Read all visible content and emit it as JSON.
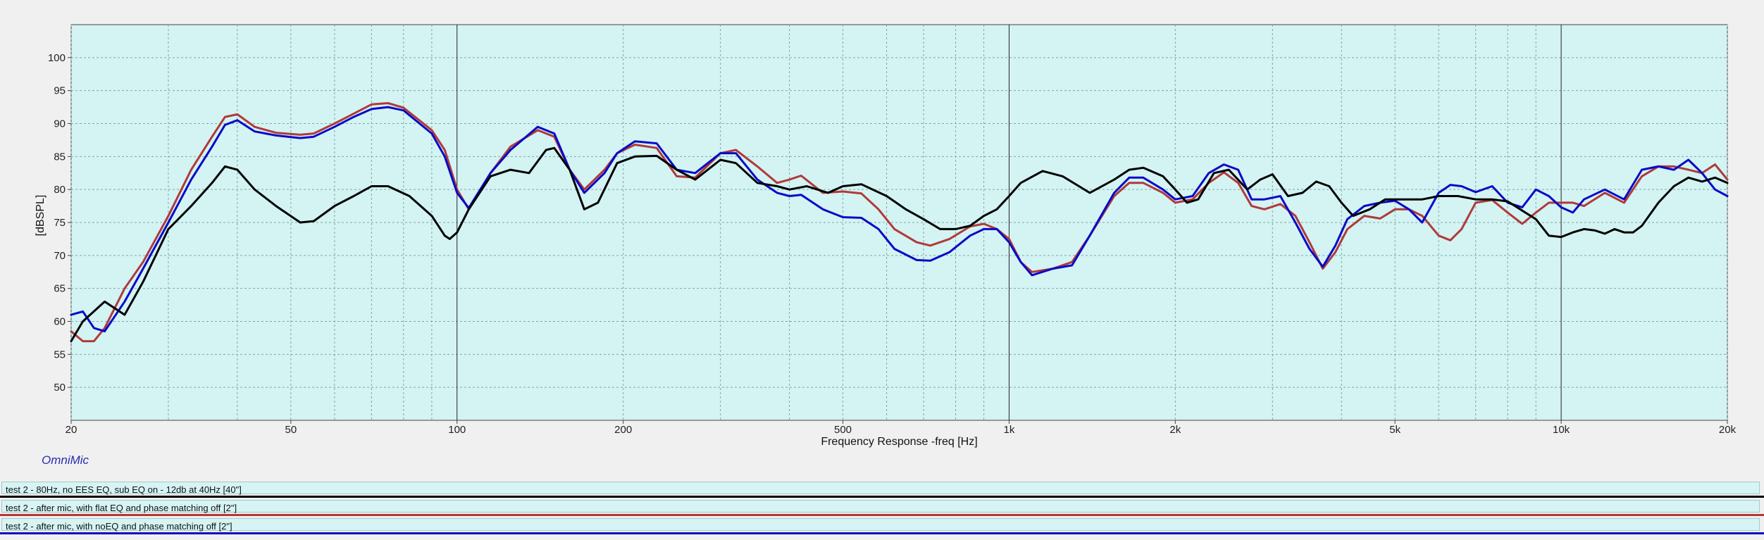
{
  "chart_data": {
    "type": "line",
    "xscale": "log",
    "xlim": [
      20,
      20000
    ],
    "ylim": [
      45,
      105
    ],
    "grid": true,
    "xlabel": "Frequency Response -freq [Hz]",
    "ylabel": "[dBSPL]",
    "yticks": [
      50,
      55,
      60,
      65,
      70,
      75,
      80,
      85,
      90,
      95,
      100
    ],
    "xticks": [
      {
        "v": 20,
        "label": "20"
      },
      {
        "v": 50,
        "label": "50"
      },
      {
        "v": 100,
        "label": "100"
      },
      {
        "v": 200,
        "label": "200"
      },
      {
        "v": 500,
        "label": "500"
      },
      {
        "v": 1000,
        "label": "1k"
      },
      {
        "v": 2000,
        "label": "2k"
      },
      {
        "v": 5000,
        "label": "5k"
      },
      {
        "v": 10000,
        "label": "10k"
      },
      {
        "v": 20000,
        "label": "20k"
      }
    ],
    "series": [
      {
        "name": "test 2 - 80Hz, no EES EQ, sub EQ on - 12db at 40Hz [40\"]",
        "color": "#000000",
        "points": [
          [
            20,
            57
          ],
          [
            21,
            60
          ],
          [
            23,
            63
          ],
          [
            25,
            61
          ],
          [
            27,
            66
          ],
          [
            30,
            74
          ],
          [
            33,
            77.5
          ],
          [
            36,
            81
          ],
          [
            38,
            83.5
          ],
          [
            40,
            83
          ],
          [
            43,
            80
          ],
          [
            47,
            77.5
          ],
          [
            52,
            75
          ],
          [
            55,
            75.2
          ],
          [
            60,
            77.5
          ],
          [
            65,
            79
          ],
          [
            70,
            80.5
          ],
          [
            75,
            80.5
          ],
          [
            82,
            79
          ],
          [
            90,
            76
          ],
          [
            95,
            73
          ],
          [
            97,
            72.5
          ],
          [
            100,
            73.5
          ],
          [
            105,
            77
          ],
          [
            115,
            82
          ],
          [
            125,
            83
          ],
          [
            135,
            82.5
          ],
          [
            145,
            86
          ],
          [
            150,
            86.3
          ],
          [
            160,
            83
          ],
          [
            170,
            77
          ],
          [
            180,
            78
          ],
          [
            195,
            84
          ],
          [
            210,
            85
          ],
          [
            230,
            85.1
          ],
          [
            250,
            83
          ],
          [
            270,
            81.5
          ],
          [
            300,
            84.5
          ],
          [
            320,
            84
          ],
          [
            350,
            81
          ],
          [
            380,
            80.5
          ],
          [
            400,
            80
          ],
          [
            430,
            80.5
          ],
          [
            470,
            79.5
          ],
          [
            500,
            80.5
          ],
          [
            540,
            80.8
          ],
          [
            600,
            79
          ],
          [
            650,
            77
          ],
          [
            700,
            75.5
          ],
          [
            750,
            74
          ],
          [
            800,
            74
          ],
          [
            850,
            74.5
          ],
          [
            900,
            76
          ],
          [
            950,
            77
          ],
          [
            1000,
            79
          ],
          [
            1050,
            81
          ],
          [
            1150,
            82.8
          ],
          [
            1250,
            82
          ],
          [
            1400,
            79.5
          ],
          [
            1550,
            81.5
          ],
          [
            1650,
            83
          ],
          [
            1750,
            83.3
          ],
          [
            1900,
            82
          ],
          [
            2000,
            80
          ],
          [
            2100,
            78
          ],
          [
            2200,
            78.5
          ],
          [
            2350,
            82.5
          ],
          [
            2500,
            83
          ],
          [
            2700,
            80
          ],
          [
            2850,
            81.5
          ],
          [
            3000,
            82.3
          ],
          [
            3200,
            79
          ],
          [
            3400,
            79.5
          ],
          [
            3600,
            81.2
          ],
          [
            3800,
            80.5
          ],
          [
            4000,
            78
          ],
          [
            4200,
            76
          ],
          [
            4500,
            77
          ],
          [
            4800,
            78.5
          ],
          [
            5200,
            78.5
          ],
          [
            5600,
            78.5
          ],
          [
            6000,
            79
          ],
          [
            6500,
            79
          ],
          [
            7000,
            78.5
          ],
          [
            7500,
            78.5
          ],
          [
            8000,
            78.2
          ],
          [
            8500,
            76.8
          ],
          [
            9000,
            75.5
          ],
          [
            9500,
            73
          ],
          [
            10000,
            72.8
          ],
          [
            10500,
            73.5
          ],
          [
            11000,
            74
          ],
          [
            11500,
            73.8
          ],
          [
            12000,
            73.3
          ],
          [
            12500,
            74
          ],
          [
            13000,
            73.5
          ],
          [
            13500,
            73.5
          ],
          [
            14000,
            74.5
          ],
          [
            15000,
            78
          ],
          [
            16000,
            80.5
          ],
          [
            17000,
            81.8
          ],
          [
            18000,
            81.2
          ],
          [
            19000,
            81.8
          ],
          [
            20000,
            81
          ]
        ]
      },
      {
        "name": "test 2 - after mic, with flat EQ and phase matching off [2\"]",
        "color": "#b03a3a",
        "points": [
          [
            20,
            58.5
          ],
          [
            21,
            57
          ],
          [
            22,
            57
          ],
          [
            23,
            59
          ],
          [
            25,
            65
          ],
          [
            27,
            69
          ],
          [
            30,
            76
          ],
          [
            33,
            83
          ],
          [
            36,
            88
          ],
          [
            38,
            91
          ],
          [
            40,
            91.4
          ],
          [
            43,
            89.5
          ],
          [
            47,
            88.6
          ],
          [
            52,
            88.3
          ],
          [
            55,
            88.5
          ],
          [
            60,
            90
          ],
          [
            65,
            91.5
          ],
          [
            70,
            92.9
          ],
          [
            75,
            93.1
          ],
          [
            80,
            92.4
          ],
          [
            90,
            89
          ],
          [
            95,
            86
          ],
          [
            100,
            80
          ],
          [
            105,
            77
          ],
          [
            115,
            82.5
          ],
          [
            125,
            86.5
          ],
          [
            140,
            89
          ],
          [
            150,
            88
          ],
          [
            160,
            83
          ],
          [
            170,
            80
          ],
          [
            185,
            83
          ],
          [
            195,
            85.5
          ],
          [
            210,
            86.8
          ],
          [
            230,
            86.3
          ],
          [
            250,
            82
          ],
          [
            270,
            81.8
          ],
          [
            300,
            85.5
          ],
          [
            320,
            86
          ],
          [
            350,
            83.5
          ],
          [
            380,
            81
          ],
          [
            400,
            81.5
          ],
          [
            420,
            82.1
          ],
          [
            460,
            79.5
          ],
          [
            500,
            79.7
          ],
          [
            540,
            79.4
          ],
          [
            580,
            77
          ],
          [
            620,
            74
          ],
          [
            680,
            72
          ],
          [
            720,
            71.5
          ],
          [
            780,
            72.5
          ],
          [
            850,
            74.4
          ],
          [
            900,
            74.8
          ],
          [
            950,
            74
          ],
          [
            1000,
            72.5
          ],
          [
            1050,
            69
          ],
          [
            1100,
            67.5
          ],
          [
            1200,
            68
          ],
          [
            1300,
            69
          ],
          [
            1400,
            73
          ],
          [
            1550,
            79
          ],
          [
            1650,
            81
          ],
          [
            1750,
            81
          ],
          [
            1900,
            79.5
          ],
          [
            2000,
            78
          ],
          [
            2150,
            78.5
          ],
          [
            2300,
            81
          ],
          [
            2450,
            82.6
          ],
          [
            2600,
            81
          ],
          [
            2750,
            77.5
          ],
          [
            2900,
            77
          ],
          [
            3100,
            77.8
          ],
          [
            3300,
            76
          ],
          [
            3500,
            72
          ],
          [
            3700,
            68
          ],
          [
            3900,
            70.5
          ],
          [
            4100,
            74
          ],
          [
            4400,
            76
          ],
          [
            4700,
            75.6
          ],
          [
            5000,
            77
          ],
          [
            5300,
            77
          ],
          [
            5600,
            76
          ],
          [
            6000,
            73
          ],
          [
            6300,
            72.3
          ],
          [
            6600,
            74
          ],
          [
            7000,
            78
          ],
          [
            7500,
            78.4
          ],
          [
            8000,
            76.5
          ],
          [
            8500,
            74.8
          ],
          [
            9000,
            76.5
          ],
          [
            9500,
            78
          ],
          [
            10000,
            78
          ],
          [
            10500,
            78
          ],
          [
            11000,
            77.5
          ],
          [
            12000,
            79.5
          ],
          [
            13000,
            78
          ],
          [
            14000,
            82
          ],
          [
            15000,
            83.5
          ],
          [
            16000,
            83.5
          ],
          [
            17000,
            83
          ],
          [
            18000,
            82.5
          ],
          [
            19000,
            83.8
          ],
          [
            20000,
            81.5
          ]
        ]
      },
      {
        "name": "test 2 - after mic, with noEQ and phase matching off [2\"]",
        "color": "#0a0ac8",
        "points": [
          [
            20,
            61
          ],
          [
            21,
            61.5
          ],
          [
            22,
            59
          ],
          [
            23,
            58.5
          ],
          [
            25,
            63
          ],
          [
            27,
            68
          ],
          [
            30,
            75
          ],
          [
            33,
            81.5
          ],
          [
            36,
            86.5
          ],
          [
            38,
            89.8
          ],
          [
            40,
            90.5
          ],
          [
            43,
            88.8
          ],
          [
            47,
            88.2
          ],
          [
            52,
            87.8
          ],
          [
            55,
            88
          ],
          [
            60,
            89.5
          ],
          [
            65,
            91
          ],
          [
            70,
            92.2
          ],
          [
            75,
            92.5
          ],
          [
            80,
            92
          ],
          [
            90,
            88.5
          ],
          [
            95,
            85
          ],
          [
            100,
            79.5
          ],
          [
            105,
            77.2
          ],
          [
            115,
            82.5
          ],
          [
            125,
            86
          ],
          [
            140,
            89.5
          ],
          [
            150,
            88.5
          ],
          [
            160,
            83
          ],
          [
            170,
            79.5
          ],
          [
            185,
            82.5
          ],
          [
            195,
            85.5
          ],
          [
            210,
            87.3
          ],
          [
            230,
            87
          ],
          [
            250,
            83
          ],
          [
            270,
            82.5
          ],
          [
            300,
            85.5
          ],
          [
            320,
            85.5
          ],
          [
            350,
            81.5
          ],
          [
            380,
            79.5
          ],
          [
            400,
            79
          ],
          [
            420,
            79.2
          ],
          [
            460,
            77
          ],
          [
            500,
            75.8
          ],
          [
            540,
            75.7
          ],
          [
            580,
            74
          ],
          [
            620,
            71
          ],
          [
            680,
            69.3
          ],
          [
            720,
            69.2
          ],
          [
            780,
            70.5
          ],
          [
            850,
            73
          ],
          [
            900,
            74
          ],
          [
            950,
            74
          ],
          [
            1000,
            72
          ],
          [
            1050,
            69
          ],
          [
            1100,
            67
          ],
          [
            1200,
            68
          ],
          [
            1300,
            68.5
          ],
          [
            1400,
            73
          ],
          [
            1550,
            79.5
          ],
          [
            1650,
            81.8
          ],
          [
            1750,
            81.8
          ],
          [
            1900,
            80
          ],
          [
            2000,
            78.5
          ],
          [
            2150,
            79
          ],
          [
            2300,
            82.5
          ],
          [
            2450,
            83.8
          ],
          [
            2600,
            83
          ],
          [
            2750,
            78.5
          ],
          [
            2900,
            78.5
          ],
          [
            3100,
            79
          ],
          [
            3300,
            75
          ],
          [
            3500,
            71
          ],
          [
            3700,
            68.3
          ],
          [
            3900,
            71.5
          ],
          [
            4100,
            75.5
          ],
          [
            4400,
            77.5
          ],
          [
            4700,
            78
          ],
          [
            5000,
            78.3
          ],
          [
            5300,
            77
          ],
          [
            5600,
            75
          ],
          [
            6000,
            79.5
          ],
          [
            6300,
            80.7
          ],
          [
            6600,
            80.5
          ],
          [
            7000,
            79.6
          ],
          [
            7500,
            80.5
          ],
          [
            8000,
            78
          ],
          [
            8500,
            77.3
          ],
          [
            9000,
            80
          ],
          [
            9500,
            79
          ],
          [
            10000,
            77.3
          ],
          [
            10500,
            76.5
          ],
          [
            11000,
            78.5
          ],
          [
            12000,
            80
          ],
          [
            13000,
            78.5
          ],
          [
            14000,
            83
          ],
          [
            15000,
            83.5
          ],
          [
            16000,
            83
          ],
          [
            17000,
            84.5
          ],
          [
            18000,
            82.5
          ],
          [
            19000,
            80
          ],
          [
            20000,
            79
          ]
        ]
      }
    ]
  },
  "brand": "OmniMic",
  "legend": [
    {
      "label": "test 2 - 80Hz, no EES EQ, sub EQ on - 12db at 40Hz [40\"]",
      "color": "#000000"
    },
    {
      "label": "test 2 - after mic, with flat EQ and phase matching off [2\"]",
      "color": "#b03a3a"
    },
    {
      "label": "test 2 - after mic, with noEQ and phase matching off [2\"]",
      "color": "#0a0ac8"
    }
  ]
}
